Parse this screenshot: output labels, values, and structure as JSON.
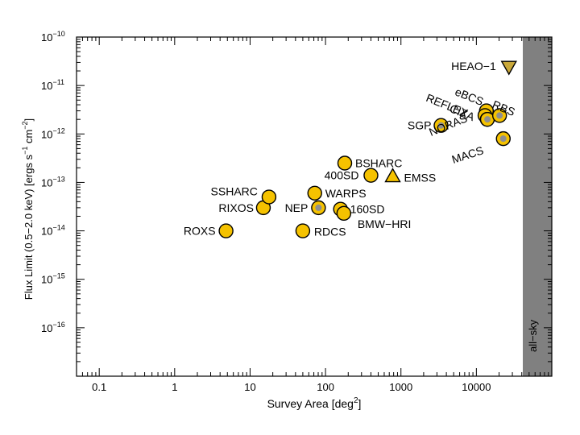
{
  "chart_data": {
    "type": "scatter",
    "title": "",
    "xlabel": "Survey Area [deg",
    "xlabel_sup": "2",
    "xlabel_end": "]",
    "ylabel": "Flux Limit (0.5−2.0 keV) [ergs s",
    "ylabel_sup1": "−1",
    "ylabel_mid": " cm",
    "ylabel_sup2": "−2",
    "ylabel_end": "]",
    "x_scale": "log",
    "y_scale": "log",
    "xlim": [
      0.05,
      100000
    ],
    "ylim": [
      1e-17,
      1e-10
    ],
    "x_ticks": [
      {
        "value": 0.1,
        "label": "0.1"
      },
      {
        "value": 1,
        "label": "1"
      },
      {
        "value": 10,
        "label": "10"
      },
      {
        "value": 100,
        "label": "100"
      },
      {
        "value": 1000,
        "label": "1000"
      },
      {
        "value": 10000,
        "label": "10000"
      }
    ],
    "y_ticks": [
      {
        "value": 1e-10,
        "base": "10",
        "exp": "−10"
      },
      {
        "value": 1e-11,
        "base": "10",
        "exp": "−11"
      },
      {
        "value": 1e-12,
        "base": "10",
        "exp": "−12"
      },
      {
        "value": 1e-13,
        "base": "10",
        "exp": "−13"
      },
      {
        "value": 1e-14,
        "base": "10",
        "exp": "−14"
      },
      {
        "value": 1e-15,
        "base": "10",
        "exp": "−15"
      },
      {
        "value": 1e-16,
        "base": "10",
        "exp": "−16"
      }
    ],
    "all_sky": {
      "label": "all−sky",
      "x_min": 41253,
      "color": "#808080"
    },
    "colors": {
      "marker_fill": "#F5C200",
      "marker_stroke": "#000000",
      "dot": "#8f8f8f",
      "shade": "#808080"
    },
    "series": [
      {
        "name": "ROXS",
        "x": 4.8,
        "y": 1e-14,
        "marker": "circle",
        "dot": false,
        "label_pos": "left"
      },
      {
        "name": "RIXOS",
        "x": 15,
        "y": 3e-14,
        "marker": "circle",
        "dot": false,
        "label_pos": "left"
      },
      {
        "name": "SSHARC",
        "x": 17.8,
        "y": 5e-14,
        "marker": "circle",
        "dot": false,
        "label_pos": "left"
      },
      {
        "name": "RDCS",
        "x": 50,
        "y": 1e-14,
        "marker": "circle",
        "dot": false,
        "label_pos": "right"
      },
      {
        "name": "WARPS",
        "x": 72,
        "y": 6e-14,
        "marker": "circle",
        "dot": false,
        "label_pos": "right"
      },
      {
        "name": "NEP",
        "x": 80.7,
        "y": 3e-14,
        "marker": "circle",
        "dot": true,
        "label_pos": "left"
      },
      {
        "name": "160SD",
        "x": 158,
        "y": 2.8e-14,
        "marker": "circle",
        "dot": false,
        "label_pos": "right"
      },
      {
        "name": "BMW−HRI",
        "x": 175,
        "y": 2.3e-14,
        "marker": "circle",
        "dot": false,
        "label_pos": "below-right"
      },
      {
        "name": "BSHARC",
        "x": 180,
        "y": 2.5e-13,
        "marker": "circle",
        "dot": false,
        "label_pos": "right"
      },
      {
        "name": "400SD",
        "x": 400,
        "y": 1.4e-13,
        "marker": "circle",
        "dot": false,
        "label_pos": "left"
      },
      {
        "name": "EMSS",
        "x": 778,
        "y": 1.3e-13,
        "marker": "triangle-up",
        "dot": false,
        "label_pos": "right"
      },
      {
        "name": "SGP",
        "x": 3400,
        "y": 1.5e-12,
        "marker": "circle",
        "dot": true,
        "label_pos": "left"
      },
      {
        "name": "eBCS",
        "x": 13578,
        "y": 3e-12,
        "marker": "circle",
        "dot": false,
        "label_pos": "rotated"
      },
      {
        "name": "CIZA",
        "x": 13000,
        "y": 2.4e-12,
        "marker": "circle",
        "dot": false,
        "label_pos": "rotated"
      },
      {
        "name": "REFLEX",
        "x": 13924,
        "y": 2e-12,
        "marker": "circle",
        "dot": false,
        "label_pos": "rotated"
      },
      {
        "name": "NORAS",
        "x": 14000,
        "y": 2e-12,
        "marker": "circle",
        "dot": true,
        "label_pos": "rotated"
      },
      {
        "name": "RBS",
        "x": 20300,
        "y": 2.4e-12,
        "marker": "circle",
        "dot": true,
        "label_pos": "rotated"
      },
      {
        "name": "MACS",
        "x": 22735,
        "y": 8e-13,
        "marker": "circle",
        "dot": true,
        "label_pos": "rotated"
      },
      {
        "name": "HEAO−1",
        "x": 27000,
        "y": 2.5e-11,
        "marker": "triangle-down",
        "dot": false,
        "label_pos": "left"
      }
    ]
  }
}
